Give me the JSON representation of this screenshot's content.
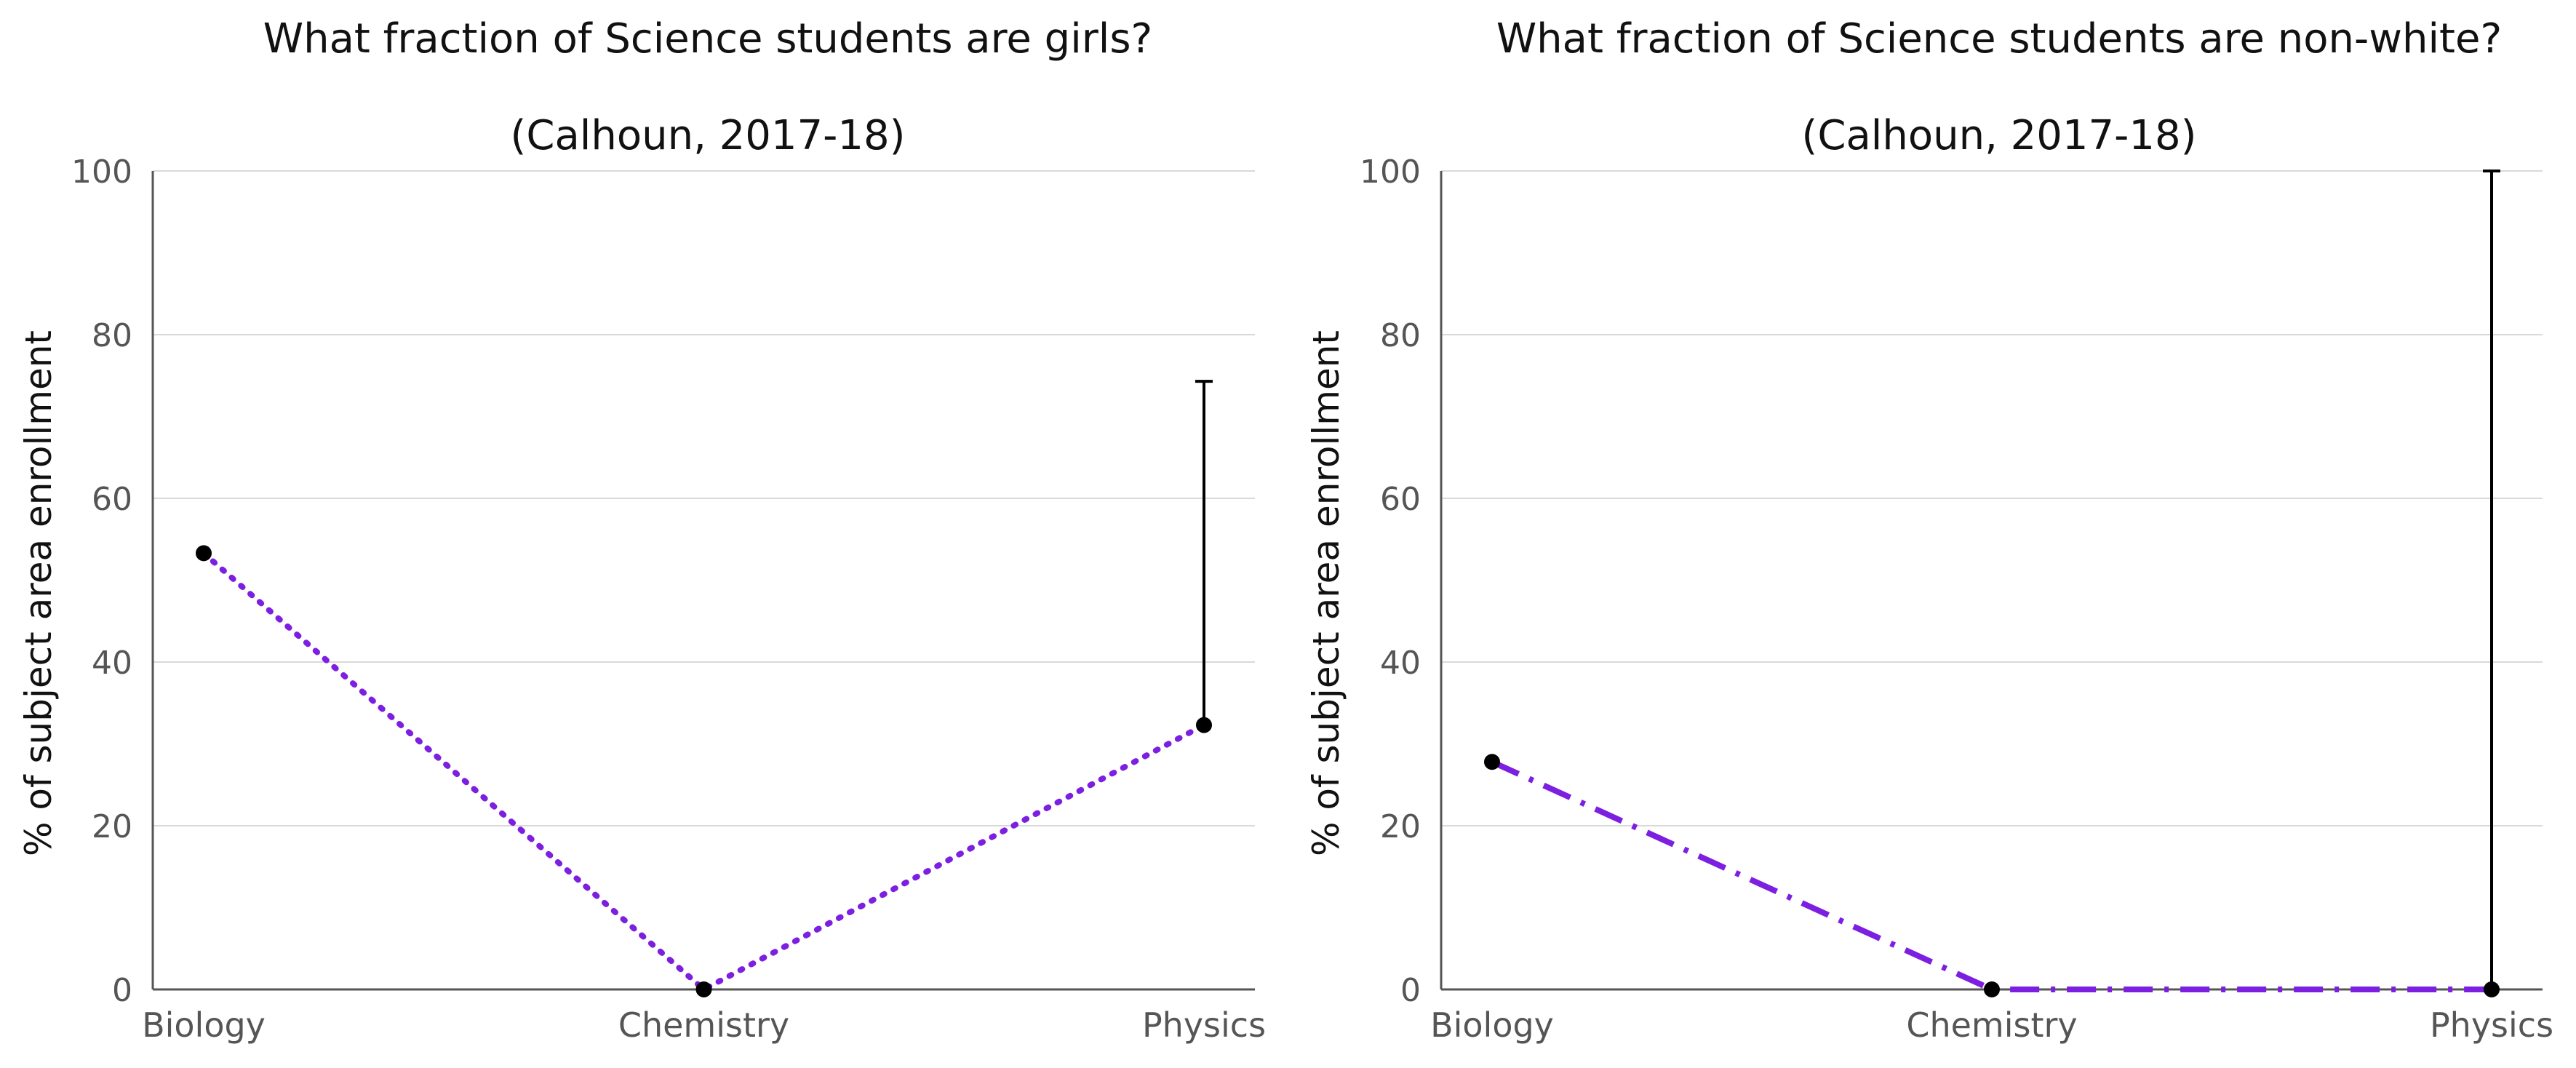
{
  "chart_data": [
    {
      "type": "line",
      "title": "What fraction of Science students are girls?",
      "subtitle": "(Calhoun, 2017-18)",
      "xlabel": "",
      "ylabel": "% of subject area enrollment",
      "categories": [
        "Biology",
        "Chemistry",
        "Physics"
      ],
      "yticks": [
        "0",
        "20",
        "40",
        "60",
        "80",
        "100"
      ],
      "ylim": [
        0,
        100
      ],
      "grid": true,
      "line_style": "dotted",
      "line_color": "#7c1fe0",
      "series": [
        {
          "values": [
            53.3,
            0,
            32.3
          ],
          "error_upper": [
            null,
            null,
            74.3
          ]
        }
      ]
    },
    {
      "type": "line",
      "title": "What fraction of Science students are non-white?",
      "subtitle": "(Calhoun, 2017-18)",
      "xlabel": "",
      "ylabel": "% of subject area enrollment",
      "categories": [
        "Biology",
        "Chemistry",
        "Physics"
      ],
      "yticks": [
        "0",
        "20",
        "40",
        "60",
        "80",
        "100"
      ],
      "ylim": [
        0,
        100
      ],
      "grid": true,
      "line_style": "dash-dot",
      "line_color": "#7c1fe0",
      "series": [
        {
          "values": [
            27.8,
            0,
            0
          ],
          "error_upper": [
            null,
            null,
            100
          ]
        }
      ]
    }
  ]
}
